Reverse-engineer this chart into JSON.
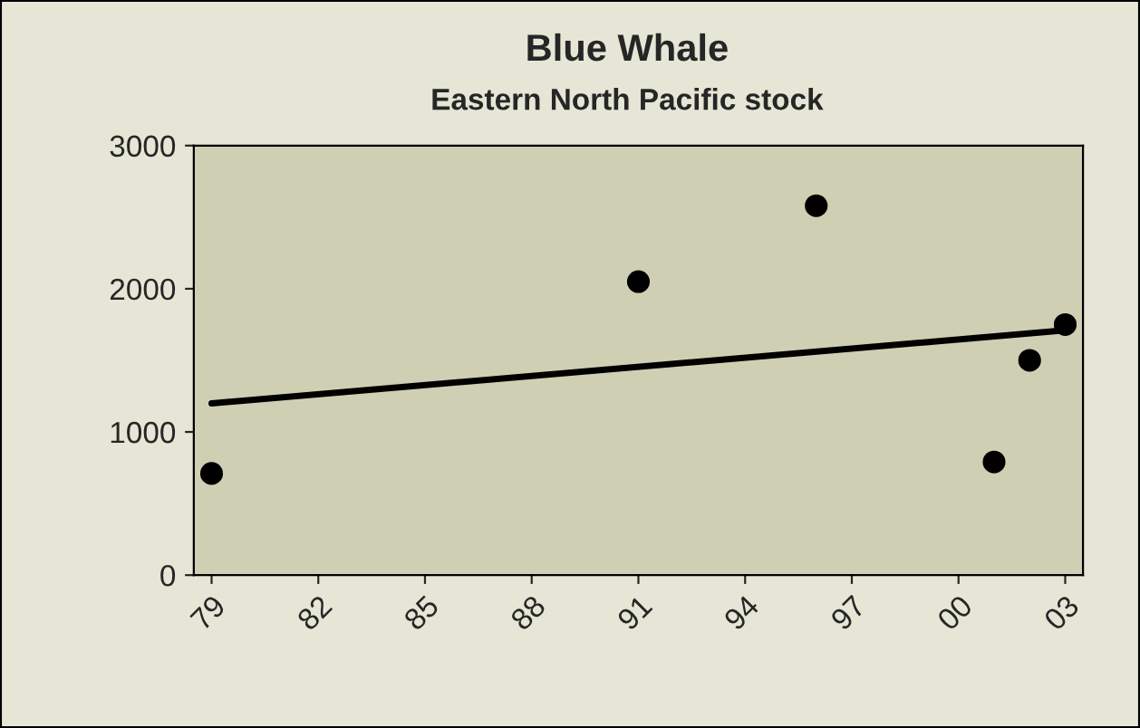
{
  "chart_data": {
    "type": "scatter",
    "title": "Blue Whale",
    "subtitle": "Eastern North Pacific stock",
    "series": [
      {
        "color": "#000000",
        "marker": "circle",
        "x": [
          1979,
          1991,
          1996,
          2001,
          2002,
          2003
        ],
        "values": [
          710,
          2050,
          2580,
          790,
          1500,
          1750
        ]
      },
      {
        "type": "line",
        "color": "#000000",
        "marker": "none",
        "x": [
          1979,
          2003
        ],
        "values": [
          1200,
          1710
        ]
      }
    ],
    "xlim": [
      1978.5,
      2003.5
    ],
    "xticks": [
      {
        "value": 1979,
        "label": "79"
      },
      {
        "value": 1982,
        "label": "82"
      },
      {
        "value": 1985,
        "label": "85"
      },
      {
        "value": 1988,
        "label": "88"
      },
      {
        "value": 1991,
        "label": "91"
      },
      {
        "value": 1994,
        "label": "94"
      },
      {
        "value": 1997,
        "label": "97"
      },
      {
        "value": 2000,
        "label": "00"
      },
      {
        "value": 2003,
        "label": "03"
      }
    ],
    "ylim": [
      0,
      3000
    ],
    "yticks": [
      0,
      1000,
      2000,
      3000
    ],
    "grid": false,
    "legend": false
  }
}
